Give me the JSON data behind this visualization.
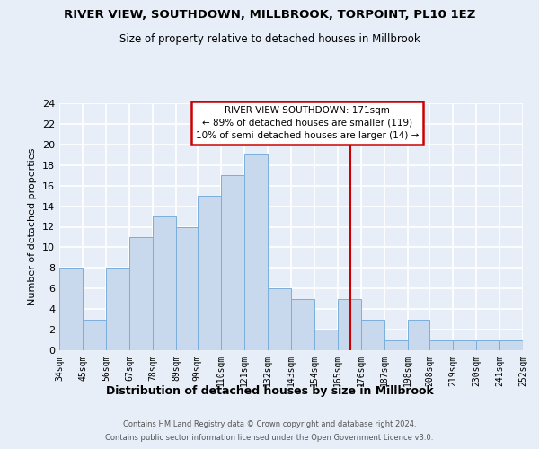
{
  "title": "RIVER VIEW, SOUTHDOWN, MILLBROOK, TORPOINT, PL10 1EZ",
  "subtitle": "Size of property relative to detached houses in Millbrook",
  "xlabel": "Distribution of detached houses by size in Millbrook",
  "ylabel": "Number of detached properties",
  "footer_line1": "Contains HM Land Registry data © Crown copyright and database right 2024.",
  "footer_line2": "Contains public sector information licensed under the Open Government Licence v3.0.",
  "bin_labels": [
    "34sqm",
    "45sqm",
    "56sqm",
    "67sqm",
    "78sqm",
    "89sqm",
    "99sqm",
    "110sqm",
    "121sqm",
    "132sqm",
    "143sqm",
    "154sqm",
    "165sqm",
    "176sqm",
    "187sqm",
    "198sqm",
    "208sqm",
    "219sqm",
    "230sqm",
    "241sqm",
    "252sqm"
  ],
  "bin_edges": [
    34,
    45,
    56,
    67,
    78,
    89,
    99,
    110,
    121,
    132,
    143,
    154,
    165,
    176,
    187,
    198,
    208,
    219,
    230,
    241,
    252
  ],
  "counts": [
    8,
    3,
    8,
    11,
    13,
    12,
    15,
    17,
    19,
    6,
    5,
    2,
    5,
    3,
    1,
    3,
    1,
    1,
    1,
    1
  ],
  "bar_color": "#c8d9ed",
  "bar_edge_color": "#7aaedb",
  "vline_x": 171,
  "vline_color": "#cc0000",
  "annotation_title": "RIVER VIEW SOUTHDOWN: 171sqm",
  "annotation_line1": "← 89% of detached houses are smaller (119)",
  "annotation_line2": "10% of semi-detached houses are larger (14) →",
  "annotation_box_color": "#ffffff",
  "annotation_box_edge_color": "#cc0000",
  "ylim": [
    0,
    24
  ],
  "yticks": [
    0,
    2,
    4,
    6,
    8,
    10,
    12,
    14,
    16,
    18,
    20,
    22,
    24
  ],
  "background_color": "#e8eef7",
  "grid_color": "#ffffff",
  "plot_area_color": "#e8eef7"
}
